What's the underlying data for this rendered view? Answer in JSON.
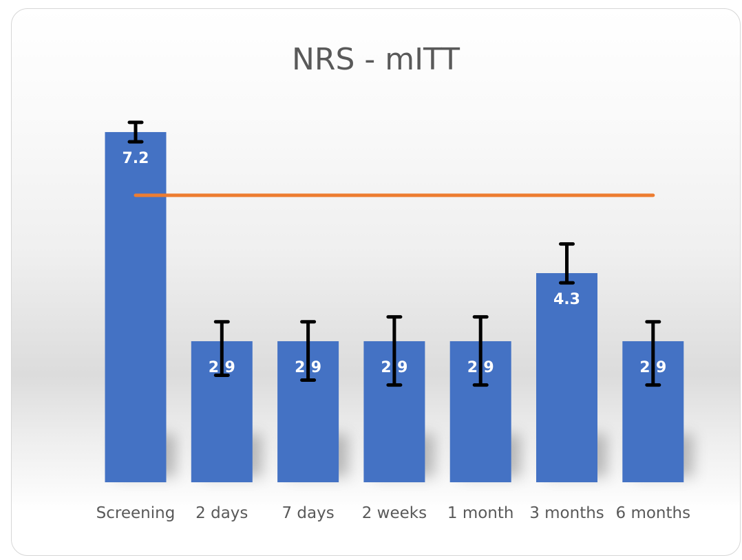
{
  "chart_data": {
    "type": "bar",
    "title": "NRS - mITT",
    "categories": [
      "Screening",
      "2 days",
      "7 days",
      "2 weeks",
      "1 month",
      "3 months",
      "6 months"
    ],
    "values": [
      7.2,
      2.9,
      2.9,
      2.9,
      2.9,
      4.3,
      2.9
    ],
    "data_labels": [
      "7.2",
      "2.9",
      "2.9",
      "2.9",
      "2.9",
      "4.3",
      "2.9"
    ],
    "error_bars": [
      {
        "low": 7.0,
        "high": 7.4
      },
      {
        "low": 2.2,
        "high": 3.3
      },
      {
        "low": 2.1,
        "high": 3.3
      },
      {
        "low": 2.0,
        "high": 3.4
      },
      {
        "low": 2.0,
        "high": 3.4
      },
      {
        "low": 4.1,
        "high": 4.9
      },
      {
        "low": 2.0,
        "high": 3.3
      }
    ],
    "reference_line": {
      "value": 5.9,
      "color": "#ed7d31"
    },
    "bar_color": "#4472c4",
    "error_bar_color": "#000000",
    "ylim": [
      0,
      8.6
    ],
    "grid": false,
    "legend": "none",
    "xlabel": "",
    "ylabel": ""
  }
}
